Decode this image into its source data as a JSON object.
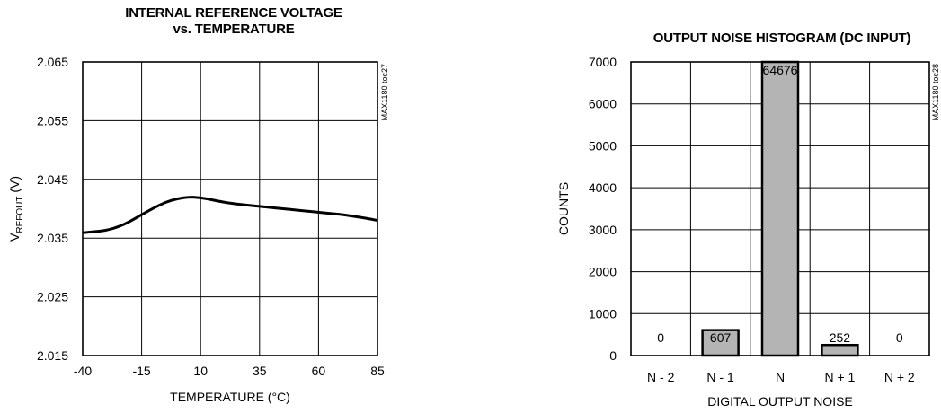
{
  "chart_data": [
    {
      "type": "line",
      "title_line1": "INTERNAL REFERENCE VOLTAGE",
      "title_line2": "vs. TEMPERATURE",
      "xlabel": "TEMPERATURE (°C)",
      "ylabel_main": "V",
      "ylabel_sub": "REFOUT",
      "ylabel_unit": " (V)",
      "id_label": "MAX1180 toc27",
      "xlim": [
        -40,
        85
      ],
      "ylim": [
        2.015,
        2.065
      ],
      "x_ticks": [
        -40,
        -15,
        10,
        35,
        60,
        85
      ],
      "y_ticks": [
        2.015,
        2.025,
        2.035,
        2.045,
        2.055,
        2.065
      ],
      "x_tick_labels": [
        "-40",
        "-15",
        "10",
        "35",
        "60",
        "85"
      ],
      "y_tick_labels": [
        "2.015",
        "2.025",
        "2.035",
        "2.045",
        "2.055",
        "2.065"
      ],
      "grid": true,
      "series": [
        {
          "x": [
            -40,
            -35,
            -30,
            -25,
            -20,
            -15,
            -10,
            -5,
            0,
            5,
            10,
            15,
            20,
            25,
            30,
            35,
            40,
            45,
            50,
            55,
            60,
            65,
            70,
            75,
            80,
            85
          ],
          "y": [
            2.0359,
            2.0361,
            2.0363,
            2.0369,
            2.0378,
            2.039,
            2.0401,
            2.0411,
            2.0417,
            2.042,
            2.0419,
            2.0415,
            2.0411,
            2.0408,
            2.0406,
            2.0404,
            2.0402,
            2.04,
            2.0398,
            2.0396,
            2.0394,
            2.0392,
            2.039,
            2.0387,
            2.0384,
            2.038
          ]
        }
      ]
    },
    {
      "type": "bar",
      "title": "OUTPUT NOISE HISTOGRAM (DC INPUT)",
      "xlabel": "DIGITAL OUTPUT NOISE",
      "ylabel": "COUNTS",
      "id_label": "MAX1180 toc28",
      "categories": [
        "N - 2",
        "N - 1",
        "N",
        "N + 1",
        "N + 2"
      ],
      "values": [
        0,
        607,
        64676,
        252,
        0
      ],
      "value_labels": [
        "0",
        "607",
        "64676",
        "252",
        "0"
      ],
      "ylim": [
        0,
        7000
      ],
      "y_ticks": [
        0,
        1000,
        2000,
        3000,
        4000,
        5000,
        6000,
        7000
      ],
      "y_tick_labels": [
        "0",
        "1000",
        "2000",
        "3000",
        "4000",
        "5000",
        "6000",
        "7000"
      ],
      "grid": true,
      "bar_colors": {
        "main": "#b4b4b4",
        "small": "#000000"
      }
    }
  ]
}
